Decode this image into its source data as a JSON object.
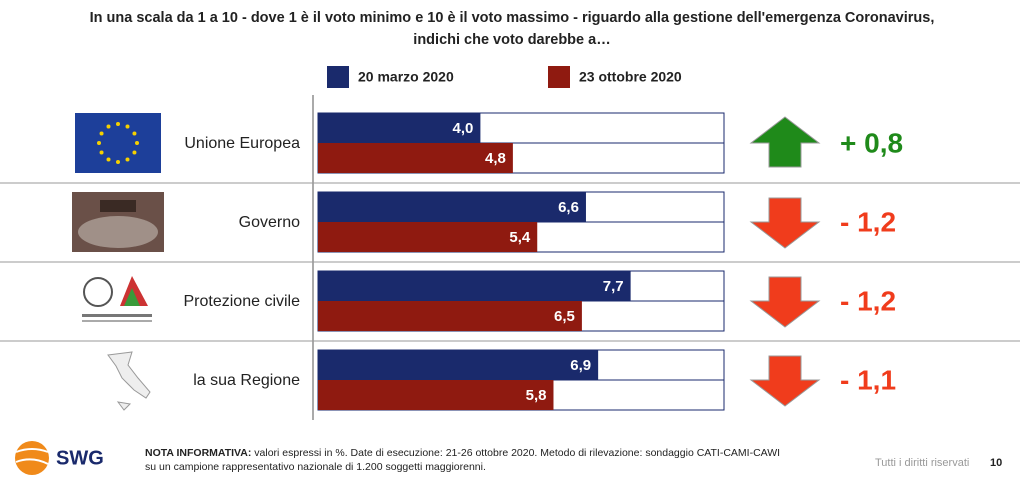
{
  "chart_data": {
    "type": "bar",
    "title": "In una scala da 1 a 10 - dove 1 è il voto minimo e 10 è il voto massimo - riguardo alla gestione dell'emergenza Coronavirus,",
    "subtitle": "indichi che voto darebbe a…",
    "categories": [
      "Unione Europea",
      "Governo",
      "Protezione civile",
      "la sua Regione"
    ],
    "series": [
      {
        "name": "20 marzo 2020",
        "color": "#1a2a6c",
        "values": [
          4.0,
          6.6,
          7.7,
          6.9
        ],
        "value_labels": [
          "4,0",
          "6,6",
          "7,7",
          "6,9"
        ]
      },
      {
        "name": "23 ottobre 2020",
        "color": "#8f1a10",
        "values": [
          4.8,
          5.4,
          6.5,
          5.8
        ],
        "value_labels": [
          "4,8",
          "5,4",
          "6,5",
          "5,8"
        ]
      }
    ],
    "changes": [
      "+ 0,8",
      "- 1,2",
      "- 1,2",
      "- 1,1"
    ],
    "xlim": [
      0,
      10
    ],
    "footer": {
      "brand": "SWG",
      "note_label": "NOTA INFORMATIVA:",
      "note": "valori espressi in %. Date di esecuzione: 21-26 ottobre 2020. Metodo di rilevazione: sondaggio CATI-CAMI-CAWI",
      "note2": "su un campione rappresentativo nazionale di 1.200 soggetti maggiorenni.",
      "rights": "Tutti i diritti riservati",
      "page": "10"
    }
  }
}
